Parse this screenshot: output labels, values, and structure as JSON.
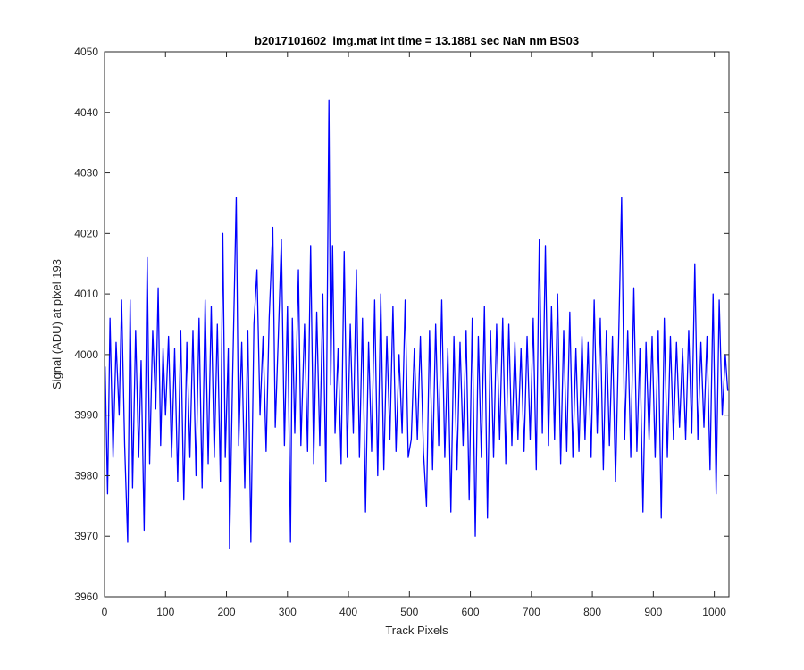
{
  "chart_data": {
    "type": "line",
    "title": "b2017101602_img.mat int time = 13.1881 sec  NaN nm BS03",
    "xlabel": "Track Pixels",
    "ylabel": "Signal (ADU) at pixel 193",
    "xlim": [
      0,
      1024
    ],
    "ylim": [
      3960,
      4050
    ],
    "xticks": [
      0,
      100,
      200,
      300,
      400,
      500,
      600,
      700,
      800,
      900,
      1000
    ],
    "yticks": [
      3960,
      3970,
      3980,
      3990,
      4000,
      4010,
      4020,
      4030,
      4040,
      4050
    ],
    "grid": false,
    "legend": "none",
    "series": [
      {
        "color": "#0000ff",
        "x": [
          1,
          5,
          9,
          14,
          19,
          24,
          28,
          33,
          38,
          42,
          46,
          51,
          56,
          60,
          65,
          70,
          74,
          79,
          84,
          88,
          92,
          96,
          100,
          105,
          110,
          115,
          120,
          125,
          130,
          135,
          140,
          145,
          150,
          155,
          160,
          165,
          170,
          175,
          180,
          185,
          190,
          194,
          198,
          203,
          205,
          210,
          216,
          220,
          225,
          230,
          235,
          240,
          245,
          250,
          255,
          260,
          265,
          270,
          276,
          280,
          285,
          290,
          295,
          300,
          305,
          308,
          312,
          318,
          322,
          328,
          333,
          338,
          343,
          348,
          353,
          358,
          363,
          368,
          371,
          374,
          378,
          383,
          388,
          393,
          398,
          403,
          408,
          413,
          418,
          423,
          428,
          433,
          438,
          443,
          448,
          453,
          458,
          463,
          468,
          473,
          478,
          483,
          488,
          493,
          498,
          503,
          508,
          513,
          518,
          523,
          528,
          533,
          538,
          543,
          548,
          553,
          558,
          563,
          568,
          573,
          578,
          583,
          588,
          593,
          598,
          603,
          608,
          613,
          618,
          623,
          628,
          633,
          638,
          643,
          648,
          653,
          658,
          663,
          668,
          673,
          678,
          683,
          688,
          693,
          698,
          703,
          708,
          713,
          718,
          723,
          728,
          733,
          738,
          743,
          748,
          753,
          758,
          763,
          768,
          773,
          778,
          783,
          788,
          793,
          798,
          803,
          808,
          813,
          818,
          823,
          828,
          833,
          838,
          843,
          848,
          853,
          858,
          863,
          868,
          873,
          878,
          883,
          888,
          893,
          898,
          903,
          908,
          913,
          918,
          923,
          928,
          933,
          938,
          943,
          948,
          953,
          958,
          963,
          968,
          973,
          978,
          983,
          988,
          993,
          998,
          1003,
          1008,
          1013,
          1018,
          1022
        ],
        "y": [
          3998,
          3977,
          4006,
          3983,
          4002,
          3990,
          4009,
          3985,
          3969,
          4009,
          3978,
          4004,
          3983,
          3999,
          3971,
          4016,
          3982,
          4004,
          3991,
          4011,
          3985,
          4001,
          3990,
          4003,
          3983,
          4001,
          3979,
          4004,
          3976,
          4002,
          3983,
          4004,
          3980,
          4006,
          3978,
          4009,
          3982,
          4008,
          3983,
          4005,
          3979,
          4020,
          3983,
          4001,
          3968,
          3996,
          4026,
          3985,
          4002,
          3978,
          4004,
          3969,
          4005,
          4014,
          3990,
          4003,
          3984,
          4006,
          4021,
          3988,
          4003,
          4019,
          3985,
          4008,
          3969,
          4006,
          3987,
          4014,
          3985,
          4005,
          3984,
          4018,
          3982,
          4007,
          3985,
          4010,
          3979,
          4042,
          3995,
          4018,
          3987,
          4001,
          3982,
          4017,
          3983,
          4005,
          3987,
          4014,
          3983,
          4006,
          3974,
          4002,
          3984,
          4009,
          3980,
          4010,
          3981,
          4003,
          3986,
          4008,
          3984,
          4000,
          3987,
          4009,
          3983,
          3986,
          4001,
          3986,
          4003,
          3984,
          3975,
          4004,
          3981,
          4005,
          3985,
          4009,
          3983,
          4001,
          3974,
          4003,
          3981,
          4002,
          3985,
          4004,
          3976,
          4006,
          3970,
          4003,
          3983,
          4008,
          3973,
          4004,
          3983,
          4005,
          3986,
          4006,
          3982,
          4005,
          3985,
          4002,
          3986,
          4001,
          3984,
          4003,
          3986,
          4006,
          3981,
          4019,
          3987,
          4018,
          3985,
          4008,
          3986,
          4010,
          3982,
          4004,
          3984,
          4007,
          3983,
          4001,
          3984,
          4003,
          3986,
          4002,
          3983,
          4009,
          3987,
          4006,
          3981,
          4004,
          3985,
          4003,
          3979,
          4002,
          4026,
          3986,
          4004,
          3983,
          4011,
          3984,
          4001,
          3974,
          4002,
          3986,
          4003,
          3983,
          4004,
          3973,
          4006,
          3983,
          4003,
          3986,
          4002,
          3988,
          4001,
          3986,
          4004,
          3987,
          4015,
          3986,
          4002,
          3988,
          4003,
          3981,
          4010,
          3977,
          4009,
          3990,
          4000,
          3994
        ]
      }
    ]
  }
}
